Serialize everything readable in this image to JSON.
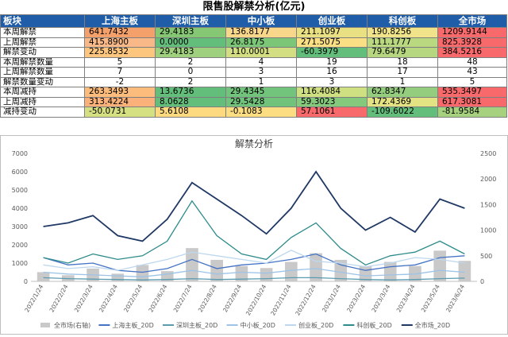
{
  "title": "限售股解禁分析(亿元)",
  "table": {
    "headers": [
      "板块",
      "上海主板",
      "深圳主板",
      "中小板",
      "创业板",
      "科创板",
      "全市场"
    ],
    "rows": [
      {
        "label": "本周解禁",
        "cells": [
          "641.7432",
          "29.4183",
          "136.8177",
          "211.1097",
          "190.8256",
          "1209.9144"
        ],
        "colors": [
          "#f4a06b",
          "#86c774",
          "#f8d68a",
          "#e9df83",
          "#f0e389",
          "#f8696b"
        ]
      },
      {
        "label": "上周解禁",
        "cells": [
          "415.8900",
          "0.0000",
          "26.8175",
          "271.5075",
          "111.1777",
          "825.3928"
        ],
        "colors": [
          "#f9b888",
          "#63be7b",
          "#7cc677",
          "#fbdf84",
          "#b9d87f",
          "#f8696b"
        ]
      },
      {
        "label": "解禁变动",
        "cells": [
          "225.8532",
          "29.4183",
          "110.0001",
          "-60.3979",
          "79.6479",
          "384.5216"
        ],
        "colors": [
          "#fdc67f",
          "#9fd07e",
          "#d2de81",
          "#63be7b",
          "#b6d67f",
          "#f8696b"
        ]
      },
      {
        "label": "本周解禁数量",
        "cells": [
          "5",
          "2",
          "4",
          "19",
          "18",
          "48"
        ],
        "colors": [
          "",
          "",
          "",
          "",
          "",
          ""
        ]
      },
      {
        "label": "上周解禁数量",
        "cells": [
          "7",
          "0",
          "3",
          "16",
          "17",
          "43"
        ],
        "colors": [
          "",
          "",
          "",
          "",
          "",
          ""
        ]
      },
      {
        "label": "解禁数量变动",
        "cells": [
          "-2",
          "2",
          "1",
          "3",
          "1",
          "5"
        ],
        "colors": [
          "",
          "",
          "",
          "",
          "",
          ""
        ]
      },
      {
        "label": "本周减持",
        "cells": [
          "263.3493",
          "13.6736",
          "29.4345",
          "116.4084",
          "62.8347",
          "535.3497"
        ],
        "colors": [
          "#fcbc7b",
          "#63be7b",
          "#72c47c",
          "#cfe082",
          "#95cd7e",
          "#f8696b"
        ]
      },
      {
        "label": "上周减持",
        "cells": [
          "313.4224",
          "8.0628",
          "29.5428",
          "59.3023",
          "172.4369",
          "617.3081"
        ],
        "colors": [
          "#fbb17a",
          "#63be7b",
          "#71c37c",
          "#85c97d",
          "#e3e383",
          "#f8696b"
        ]
      },
      {
        "label": "减持变动",
        "cells": [
          "-50.0731",
          "5.6108",
          "-0.1083",
          "57.1061",
          "-109.6022",
          "-81.9584"
        ],
        "colors": [
          "#d4e082",
          "#fdd980",
          "#fddd82",
          "#f8696b",
          "#63be7b",
          "#a6d27f"
        ]
      }
    ]
  },
  "chart_data": {
    "type": "line",
    "title": "解禁分析",
    "x": [
      "2022/1/24",
      "2022/2/24",
      "2022/3/24",
      "2022/4/24",
      "2022/5/24",
      "2022/6/24",
      "2022/7/24",
      "2022/8/24",
      "2022/9/24",
      "2022/10/24",
      "2022/11/24",
      "2022/12/24",
      "2023/1/24",
      "2023/2/24",
      "2023/3/24",
      "2023/4/24",
      "2023/5/24",
      "2023/6/24"
    ],
    "ylim_left": [
      0,
      7000
    ],
    "ylim_right": [
      0,
      2500
    ],
    "yticks_left": [
      0,
      1000,
      2000,
      3000,
      4000,
      5000,
      6000,
      7000
    ],
    "yticks_right": [
      0,
      500,
      1000,
      1500,
      2000,
      2500
    ],
    "grid": false,
    "legend_position": "bottom",
    "series": [
      {
        "name": "全市场(右轴)",
        "axis": "right",
        "kind": "bar",
        "color": "#c9c9c9",
        "values": [
          180,
          120,
          250,
          150,
          320,
          200,
          650,
          420,
          300,
          260,
          380,
          550,
          420,
          300,
          380,
          300,
          600,
          400
        ]
      },
      {
        "name": "上海主板_20D",
        "axis": "left",
        "kind": "line",
        "color": "#4472c4",
        "values": [
          1300,
          900,
          1000,
          600,
          500,
          700,
          1200,
          700,
          900,
          1000,
          1200,
          1500,
          900,
          600,
          800,
          900,
          1300,
          1400
        ]
      },
      {
        "name": "深圳主板_20D",
        "axis": "left",
        "kind": "line",
        "color": "#5b9bb0",
        "values": [
          200,
          150,
          120,
          100,
          80,
          100,
          150,
          100,
          120,
          150,
          200,
          200,
          150,
          100,
          80,
          100,
          150,
          180
        ]
      },
      {
        "name": "中小板_20D",
        "axis": "left",
        "kind": "line",
        "color": "#9dc3e6",
        "values": [
          500,
          400,
          350,
          300,
          250,
          400,
          600,
          400,
          500,
          450,
          600,
          700,
          500,
          300,
          350,
          400,
          600,
          500
        ]
      },
      {
        "name": "创业板_20D",
        "axis": "left",
        "kind": "line",
        "color": "#bdd7ee",
        "values": [
          900,
          700,
          800,
          600,
          900,
          1200,
          1600,
          1400,
          1200,
          1000,
          1700,
          1100,
          1000,
          800,
          1000,
          1300,
          1200,
          1000
        ]
      },
      {
        "name": "科创板_20D",
        "axis": "left",
        "kind": "line",
        "color": "#2e8b8b",
        "values": [
          1300,
          1000,
          1500,
          1200,
          1400,
          2200,
          4400,
          2500,
          1500,
          1200,
          2400,
          3200,
          1800,
          900,
          1400,
          1600,
          2200,
          1500
        ]
      },
      {
        "name": "全市场_20D",
        "axis": "left",
        "kind": "line",
        "color": "#1f3864",
        "values": [
          3000,
          3200,
          3600,
          2500,
          2200,
          3400,
          5400,
          4500,
          3600,
          2600,
          4000,
          6000,
          4000,
          2800,
          3500,
          2700,
          4500,
          4000
        ]
      }
    ]
  }
}
